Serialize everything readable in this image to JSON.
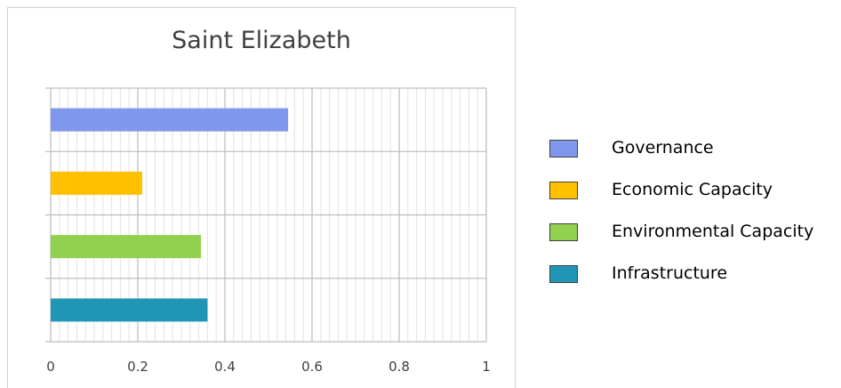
{
  "chart_data": {
    "type": "bar",
    "orientation": "horizontal",
    "title": "Saint Elizabeth",
    "xlabel": "",
    "ylabel": "",
    "xlim": [
      0,
      1
    ],
    "x_ticks": [
      "0",
      "0.2",
      "0.4",
      "0.6",
      "0.8",
      "1"
    ],
    "grid": true,
    "legend_position": "right",
    "series": [
      {
        "name": "Governance",
        "value": 0.545,
        "color": "#7f98ee"
      },
      {
        "name": "Economic Capacity",
        "value": 0.21,
        "color": "#ffc000"
      },
      {
        "name": "Environmental Capacity",
        "value": 0.345,
        "color": "#92d050"
      },
      {
        "name": "Infrastructure",
        "value": 0.36,
        "color": "#2196b4"
      }
    ]
  }
}
